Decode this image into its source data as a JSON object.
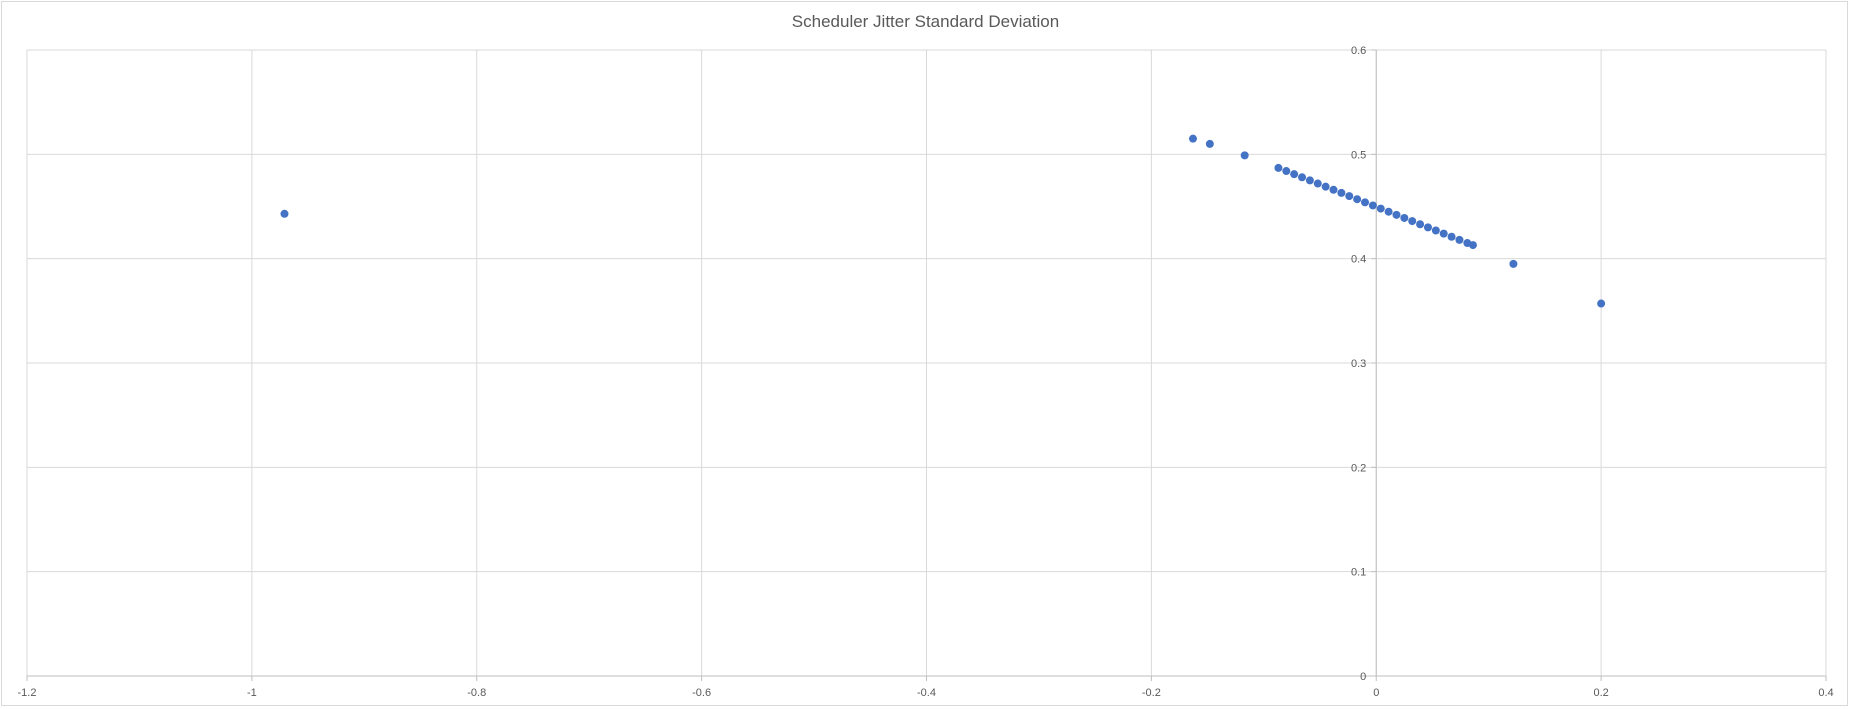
{
  "chart_data": {
    "type": "scatter",
    "title": "Scheduler Jitter Standard Deviation",
    "xlabel": "",
    "ylabel": "",
    "xlim": [
      -1.2,
      0.4
    ],
    "ylim": [
      0,
      0.6
    ],
    "xticks": [
      -1.2,
      -1,
      -0.8,
      -0.6,
      -0.4,
      -0.2,
      0,
      0.2,
      0.4
    ],
    "yticks": [
      0,
      0.1,
      0.2,
      0.3,
      0.4,
      0.5,
      0.6
    ],
    "xtick_labels": [
      "-1.2",
      "-1",
      "-0.8",
      "-0.6",
      "-0.4",
      "-0.2",
      "0",
      "0.2",
      "0.4"
    ],
    "ytick_labels": [
      "0",
      "0.1",
      "0.2",
      "0.3",
      "0.4",
      "0.5",
      "0.6"
    ],
    "grid": true,
    "legend": "none",
    "marker_color": "#4472c4",
    "series": [
      {
        "points": [
          {
            "x": -0.971,
            "y": 0.443
          },
          {
            "x": -0.163,
            "y": 0.515
          },
          {
            "x": -0.148,
            "y": 0.51
          },
          {
            "x": -0.117,
            "y": 0.499
          },
          {
            "x": -0.087,
            "y": 0.487
          },
          {
            "x": -0.08,
            "y": 0.484
          },
          {
            "x": -0.073,
            "y": 0.481
          },
          {
            "x": -0.066,
            "y": 0.478
          },
          {
            "x": -0.059,
            "y": 0.475
          },
          {
            "x": -0.052,
            "y": 0.472
          },
          {
            "x": -0.045,
            "y": 0.469
          },
          {
            "x": -0.038,
            "y": 0.466
          },
          {
            "x": -0.031,
            "y": 0.463
          },
          {
            "x": -0.024,
            "y": 0.46
          },
          {
            "x": -0.017,
            "y": 0.457
          },
          {
            "x": -0.01,
            "y": 0.454
          },
          {
            "x": -0.003,
            "y": 0.451
          },
          {
            "x": 0.004,
            "y": 0.448
          },
          {
            "x": 0.011,
            "y": 0.445
          },
          {
            "x": 0.018,
            "y": 0.442
          },
          {
            "x": 0.025,
            "y": 0.439
          },
          {
            "x": 0.032,
            "y": 0.436
          },
          {
            "x": 0.039,
            "y": 0.433
          },
          {
            "x": 0.046,
            "y": 0.43
          },
          {
            "x": 0.053,
            "y": 0.427
          },
          {
            "x": 0.06,
            "y": 0.424
          },
          {
            "x": 0.067,
            "y": 0.421
          },
          {
            "x": 0.074,
            "y": 0.418
          },
          {
            "x": 0.081,
            "y": 0.415
          },
          {
            "x": 0.086,
            "y": 0.413
          },
          {
            "x": 0.122,
            "y": 0.395
          },
          {
            "x": 0.2,
            "y": 0.357
          }
        ]
      }
    ]
  }
}
